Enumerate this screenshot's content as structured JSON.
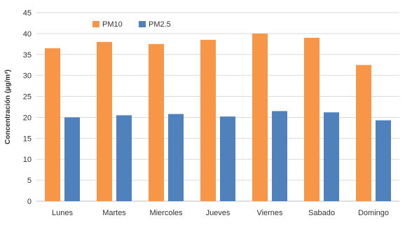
{
  "chart_data": {
    "type": "bar",
    "categories": [
      "Lunes",
      "Martes",
      "Miercoles",
      "Jueves",
      "Viernes",
      "Sabado",
      "Domingo"
    ],
    "series": [
      {
        "name": "PM10",
        "values": [
          36.5,
          38.0,
          37.5,
          38.5,
          40.0,
          39.0,
          32.5
        ],
        "color": "#F79646"
      },
      {
        "name": "PM2.5",
        "values": [
          20.0,
          20.5,
          20.8,
          20.2,
          21.5,
          21.2,
          19.3
        ],
        "color": "#4F81BD"
      }
    ],
    "ylabel": "Concentración (μg/m³)",
    "xlabel": "",
    "title": "",
    "ylim": [
      0,
      45
    ],
    "yticks": [
      "0",
      "5",
      "10",
      "15",
      "20",
      "25",
      "30",
      "35",
      "40",
      "45"
    ],
    "grid": true,
    "legend_position": "top-left"
  }
}
